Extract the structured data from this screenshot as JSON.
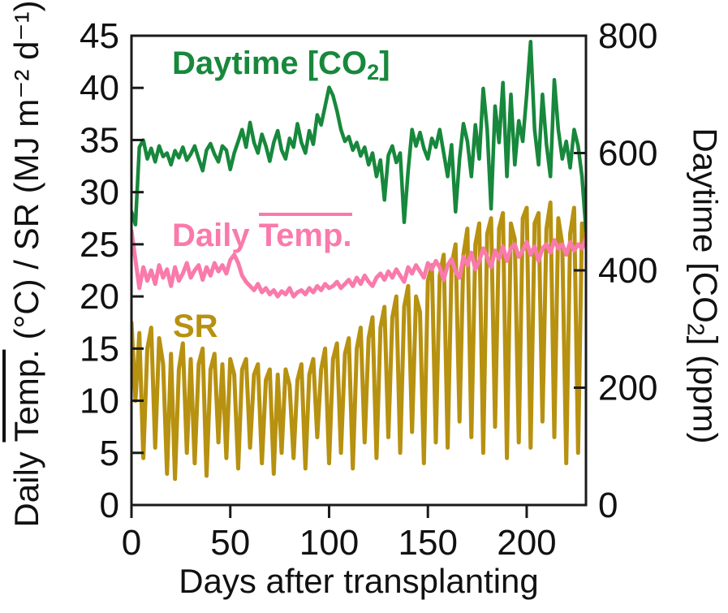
{
  "chart_data": {
    "type": "line",
    "title": "",
    "xlabel": "Days after transplanting",
    "ylabel_left": "Daily Temp. (°C) / SR (MJ m⁻² d⁻¹)",
    "ylabel_right": "Daytime [CO₂] (ppm)",
    "xlim": [
      0,
      230
    ],
    "ylim_left": [
      0,
      45
    ],
    "ylim_right": [
      0,
      800
    ],
    "x_ticks": [
      0,
      50,
      100,
      150,
      200
    ],
    "y_ticks_left": [
      0,
      5,
      10,
      15,
      20,
      25,
      30,
      35,
      40,
      45
    ],
    "y_ticks_right": [
      0,
      200,
      400,
      600,
      800
    ],
    "grid": false,
    "legend_position": "inline-annotations",
    "x": [
      0,
      2,
      4,
      6,
      8,
      10,
      12,
      14,
      16,
      18,
      20,
      22,
      24,
      26,
      28,
      30,
      32,
      34,
      36,
      38,
      40,
      42,
      44,
      46,
      48,
      50,
      52,
      54,
      56,
      58,
      60,
      62,
      64,
      66,
      68,
      70,
      72,
      74,
      76,
      78,
      80,
      82,
      84,
      86,
      88,
      90,
      92,
      94,
      96,
      98,
      100,
      102,
      104,
      106,
      108,
      110,
      112,
      114,
      116,
      118,
      120,
      122,
      124,
      126,
      128,
      130,
      132,
      134,
      136,
      138,
      140,
      142,
      144,
      146,
      148,
      150,
      152,
      154,
      156,
      158,
      160,
      162,
      164,
      166,
      168,
      170,
      172,
      174,
      176,
      178,
      180,
      182,
      184,
      186,
      188,
      190,
      192,
      194,
      196,
      198,
      200,
      202,
      204,
      206,
      208,
      210,
      212,
      214,
      216,
      218,
      220,
      222,
      224,
      226,
      228,
      230
    ],
    "series": [
      {
        "id": "co2",
        "name": "Daytime [CO₂]",
        "axis": "right",
        "unit": "ppm",
        "color": "#17883c",
        "values": [
          500,
          478,
          610,
          622,
          590,
          608,
          585,
          612,
          594,
          600,
          580,
          604,
          592,
          610,
          588,
          598,
          612,
          590,
          570,
          605,
          616,
          598,
          585,
          612,
          605,
          572,
          600,
          620,
          640,
          610,
          652,
          618,
          600,
          632,
          612,
          586,
          618,
          638,
          605,
          590,
          625,
          610,
          650,
          618,
          600,
          638,
          615,
          665,
          648,
          680,
          712,
          698,
          672,
          640,
          620,
          628,
          605,
          618,
          595,
          610,
          580,
          600,
          560,
          588,
          520,
          596,
          612,
          584,
          600,
          482,
          570,
          640,
          612,
          635,
          608,
          590,
          625,
          610,
          640,
          600,
          560,
          614,
          500,
          590,
          650,
          620,
          560,
          648,
          590,
          710,
          640,
          505,
          680,
          618,
          720,
          560,
          700,
          580,
          655,
          620,
          700,
          790,
          640,
          580,
          700,
          615,
          560,
          725,
          640,
          590,
          620,
          575,
          640,
          612,
          560,
          468
        ]
      },
      {
        "id": "temp",
        "name": "Daily Temp.",
        "axis": "left",
        "unit": "°C",
        "color": "#f97aab",
        "values": [
          26.3,
          23.5,
          20.8,
          22.8,
          21.5,
          22.5,
          21.2,
          23.0,
          21.8,
          22.6,
          21.0,
          22.8,
          21.5,
          22.2,
          23.2,
          21.8,
          22.5,
          23.0,
          21.6,
          22.8,
          22.0,
          23.2,
          22.4,
          23.0,
          22.2,
          23.5,
          24.0,
          23.2,
          22.0,
          21.4,
          21.0,
          20.6,
          21.2,
          20.4,
          20.8,
          20.2,
          20.6,
          20.0,
          20.5,
          20.2,
          20.8,
          20.0,
          20.4,
          20.6,
          20.2,
          20.8,
          20.4,
          21.0,
          20.6,
          21.2,
          20.8,
          21.0,
          21.4,
          20.8,
          21.2,
          21.6,
          21.0,
          21.8,
          21.2,
          22.0,
          21.4,
          21.0,
          21.8,
          22.2,
          21.6,
          22.4,
          21.8,
          22.6,
          22.0,
          21.4,
          22.8,
          22.2,
          23.0,
          22.4,
          21.8,
          23.2,
          22.6,
          23.4,
          22.8,
          21.6,
          23.0,
          23.6,
          22.4,
          21.8,
          23.8,
          23.0,
          24.2,
          22.6,
          23.4,
          24.6,
          23.8,
          22.8,
          24.4,
          23.6,
          24.8,
          23.4,
          24.6,
          25.0,
          23.8,
          24.4,
          25.2,
          24.0,
          24.8,
          23.4,
          24.6,
          25.0,
          24.2,
          25.4,
          24.6,
          25.0,
          24.0,
          25.2,
          24.4,
          25.0,
          24.6,
          25.6
        ]
      },
      {
        "id": "sr",
        "name": "SR",
        "axis": "left",
        "unit": "MJ m⁻² d⁻¹",
        "color": "#b79110",
        "values": [
          17.5,
          10.0,
          16.5,
          4.5,
          15.0,
          17.0,
          5.5,
          16.0,
          13.5,
          3.0,
          14.5,
          2.5,
          13.0,
          15.5,
          5.0,
          14.0,
          4.0,
          13.5,
          15.0,
          2.8,
          13.0,
          14.5,
          6.0,
          13.5,
          4.5,
          14.0,
          12.5,
          3.5,
          13.0,
          14.0,
          5.5,
          12.5,
          13.5,
          4.0,
          12.0,
          13.0,
          3.0,
          12.5,
          5.0,
          13.0,
          11.5,
          4.5,
          12.0,
          13.5,
          3.5,
          12.5,
          14.0,
          6.5,
          13.0,
          15.0,
          4.0,
          14.0,
          15.5,
          5.0,
          14.5,
          16.0,
          3.5,
          15.0,
          17.0,
          6.0,
          16.0,
          18.0,
          4.5,
          17.0,
          19.0,
          6.5,
          18.0,
          20.0,
          5.0,
          19.0,
          21.0,
          7.0,
          20.0,
          18.5,
          4.0,
          21.5,
          23.0,
          6.0,
          22.0,
          24.0,
          5.5,
          23.0,
          25.0,
          8.0,
          24.0,
          26.5,
          6.5,
          25.0,
          27.0,
          5.0,
          26.0,
          27.5,
          7.5,
          26.5,
          28.0,
          4.5,
          27.0,
          25.5,
          6.0,
          27.5,
          28.5,
          5.5,
          27.0,
          28.0,
          8.0,
          26.5,
          29.0,
          6.5,
          27.5,
          25.0,
          4.0,
          26.0,
          28.5,
          5.0,
          27.0,
          25.0
        ]
      }
    ]
  },
  "annotations": {
    "co2_label": {
      "pre": "Daytime [CO",
      "sub": "2",
      "post": "]"
    },
    "temp_label": {
      "pre": "Daily ",
      "over": "Temp."
    },
    "sr_label": "SR",
    "left_axis": {
      "pre": "Daily ",
      "over": "Temp.",
      "post": " (°C) / SR (MJ m⁻² d⁻¹)"
    },
    "right_axis": {
      "pre": "Daytime [CO",
      "sub": "2",
      "post": "] (ppm)"
    }
  },
  "colors": {
    "co2": "#17883c",
    "temp": "#f97aab",
    "sr": "#b79110",
    "axis": "#1a1a1a",
    "background": "#ffffff"
  }
}
